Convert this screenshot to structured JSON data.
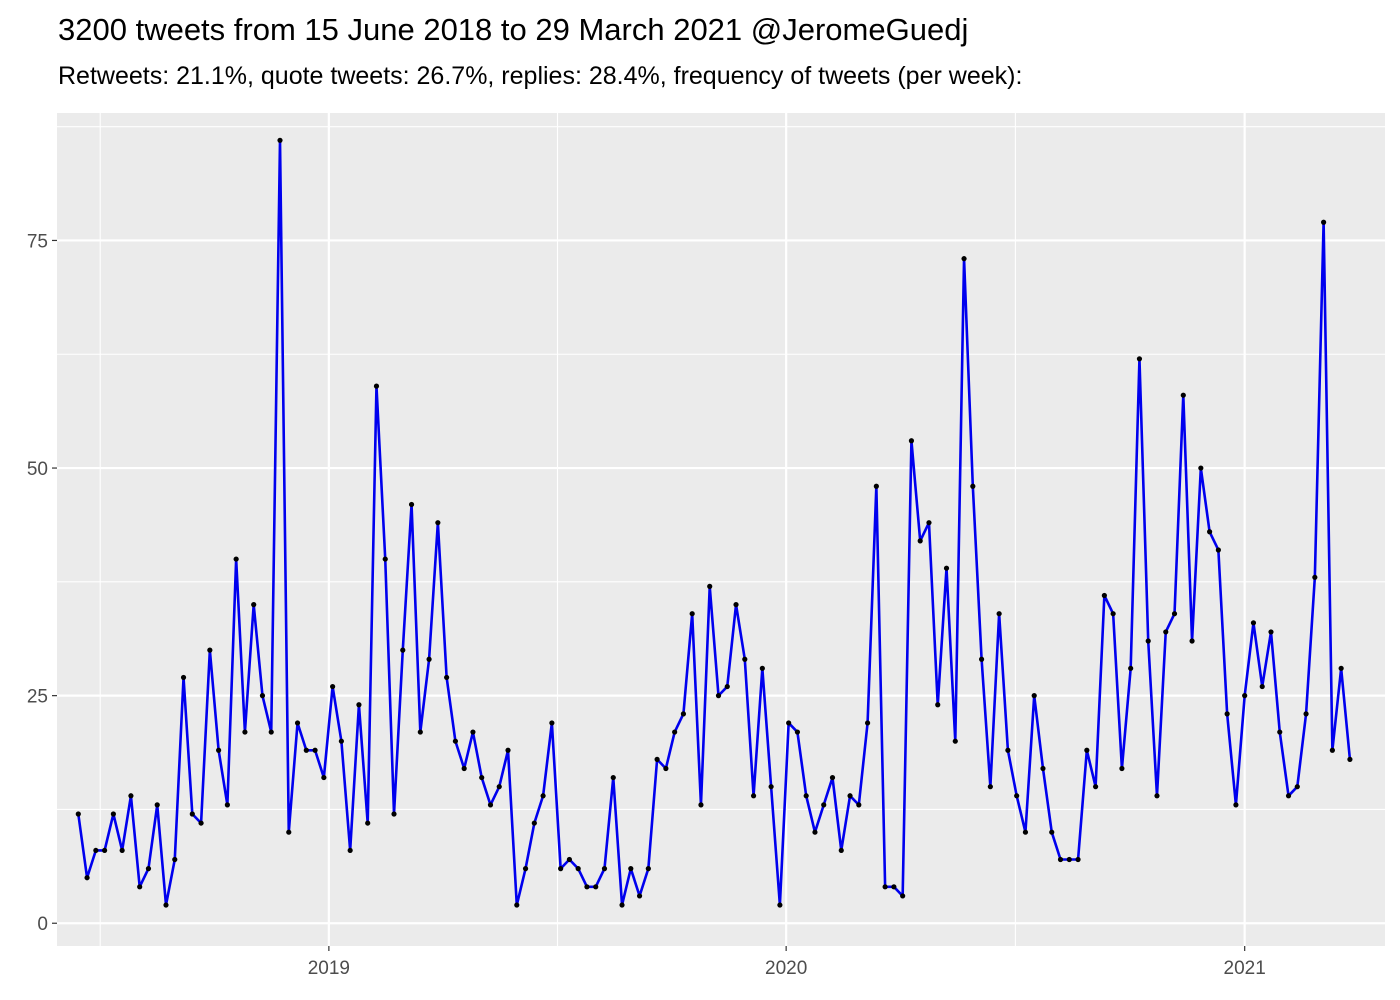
{
  "title": "3200 tweets from 15 June 2018 to 29 March 2021 @JeromeGuedj",
  "subtitle": "Retweets: 21.1%, quote tweets: 26.7%, replies: 28.4%, frequency of tweets (per week):",
  "colors": {
    "panel": "#ebebeb",
    "grid": "#ffffff",
    "line": "#0000ee",
    "point": "#000000",
    "tick_text": "#4d4d4d"
  },
  "chart_data": {
    "type": "line",
    "title": "3200 tweets from 15 June 2018 to 29 March 2021 @JeromeGuedj",
    "subtitle": "Retweets: 21.1%, quote tweets: 26.7%, replies: 28.4%, frequency of tweets (per week):",
    "xlabel": "",
    "ylabel": "",
    "x_start": "2018-06-15",
    "x_step_days": 7,
    "x_ticks": [
      {
        "label": "2019",
        "date": "2019-01-01"
      },
      {
        "label": "2020",
        "date": "2020-01-01"
      },
      {
        "label": "2021",
        "date": "2021-01-01"
      }
    ],
    "xlim": [
      "2018-05-29",
      "2021-04-23"
    ],
    "ylim": [
      -2.5,
      89
    ],
    "y_ticks": [
      0,
      25,
      50,
      75
    ],
    "grid": true,
    "legend": "none",
    "series": [
      {
        "values": [
          12,
          5,
          8,
          8,
          12,
          8,
          14,
          4,
          6,
          13,
          2,
          7,
          27,
          12,
          11,
          30,
          19,
          13,
          40,
          21,
          35,
          25,
          21,
          86,
          10,
          22,
          19,
          19,
          16,
          26,
          20,
          8,
          24,
          11,
          59,
          40,
          12,
          30,
          46,
          21,
          29,
          44,
          27,
          20,
          17,
          21,
          16,
          13,
          15,
          19,
          2,
          6,
          11,
          14,
          22,
          6,
          7,
          6,
          4,
          4,
          6,
          16,
          2,
          6,
          3,
          6,
          18,
          17,
          21,
          23,
          34,
          13,
          37,
          25,
          26,
          35,
          29,
          14,
          28,
          15,
          2,
          22,
          21,
          14,
          10,
          13,
          16,
          8,
          14,
          13,
          22,
          48,
          4,
          4,
          3,
          53,
          42,
          44,
          24,
          39,
          20,
          73,
          48,
          29,
          15,
          34,
          19,
          14,
          10,
          25,
          17,
          10,
          7,
          7,
          7,
          19,
          15,
          36,
          34,
          17,
          28,
          62,
          31,
          14,
          32,
          34,
          58,
          31,
          50,
          43,
          41,
          23,
          13,
          25,
          33,
          26,
          32,
          21,
          14,
          15,
          23,
          38,
          77,
          19,
          28,
          18
        ]
      }
    ]
  }
}
